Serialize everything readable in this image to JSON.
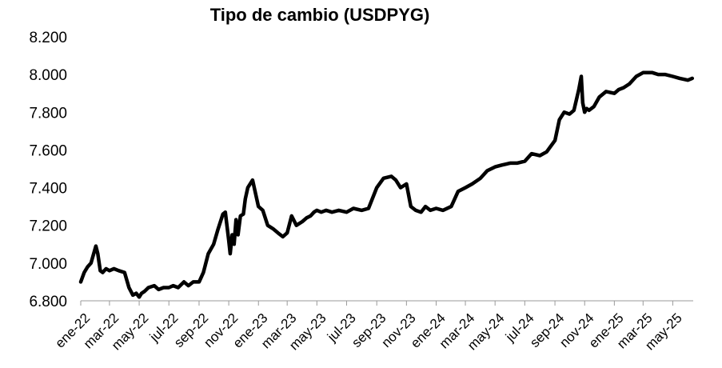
{
  "chart_data": {
    "type": "line",
    "title": "Tipo de cambio (USDPYG)",
    "xlabel": "",
    "ylabel": "",
    "ylim": [
      6800,
      8200
    ],
    "yticks": [
      {
        "value": 6800,
        "label": "6.800"
      },
      {
        "value": 7000,
        "label": "7.000"
      },
      {
        "value": 7200,
        "label": "7.200"
      },
      {
        "value": 7400,
        "label": "7.400"
      },
      {
        "value": 7600,
        "label": "7.600"
      },
      {
        "value": 7800,
        "label": "7.800"
      },
      {
        "value": 8000,
        "label": "8.000"
      },
      {
        "value": 8200,
        "label": "8.200"
      }
    ],
    "xticks": [
      {
        "date": "2022-01-01",
        "label": "ene-22"
      },
      {
        "date": "2022-03-01",
        "label": "mar-22"
      },
      {
        "date": "2022-05-01",
        "label": "may-22"
      },
      {
        "date": "2022-07-01",
        "label": "jul-22"
      },
      {
        "date": "2022-09-01",
        "label": "sep-22"
      },
      {
        "date": "2022-11-01",
        "label": "nov-22"
      },
      {
        "date": "2023-01-01",
        "label": "ene-23"
      },
      {
        "date": "2023-03-01",
        "label": "mar-23"
      },
      {
        "date": "2023-05-01",
        "label": "may-23"
      },
      {
        "date": "2023-07-01",
        "label": "jul-23"
      },
      {
        "date": "2023-09-01",
        "label": "sep-23"
      },
      {
        "date": "2023-11-01",
        "label": "nov-23"
      },
      {
        "date": "2024-01-01",
        "label": "ene-24"
      },
      {
        "date": "2024-03-01",
        "label": "mar-24"
      },
      {
        "date": "2024-05-01",
        "label": "may-24"
      },
      {
        "date": "2024-07-01",
        "label": "jul-24"
      },
      {
        "date": "2024-09-01",
        "label": "sep-24"
      },
      {
        "date": "2024-11-01",
        "label": "nov-24"
      },
      {
        "date": "2025-01-01",
        "label": "ene-25"
      },
      {
        "date": "2025-03-01",
        "label": "mar-25"
      },
      {
        "date": "2025-05-01",
        "label": "may-25"
      }
    ],
    "grid": false,
    "legend": "none",
    "line_color": "#000000",
    "series": [
      {
        "x": [
          "2022-01-01",
          "2022-01-08",
          "2022-01-15",
          "2022-01-22",
          "2022-02-01",
          "2022-02-05",
          "2022-02-10",
          "2022-02-15",
          "2022-02-22",
          "2022-03-01",
          "2022-03-10",
          "2022-03-20",
          "2022-04-01",
          "2022-04-10",
          "2022-04-18",
          "2022-04-25",
          "2022-05-01",
          "2022-05-06",
          "2022-05-12",
          "2022-05-20",
          "2022-06-01",
          "2022-06-10",
          "2022-06-20",
          "2022-07-01",
          "2022-07-10",
          "2022-07-20",
          "2022-08-01",
          "2022-08-10",
          "2022-08-20",
          "2022-09-01",
          "2022-09-10",
          "2022-09-20",
          "2022-10-01",
          "2022-10-10",
          "2022-10-20",
          "2022-10-25",
          "2022-11-01",
          "2022-11-04",
          "2022-11-08",
          "2022-11-12",
          "2022-11-16",
          "2022-11-20",
          "2022-11-25",
          "2022-12-01",
          "2022-12-05",
          "2022-12-10",
          "2022-12-20",
          "2023-01-01",
          "2023-01-10",
          "2023-01-20",
          "2023-02-01",
          "2023-02-10",
          "2023-02-20",
          "2023-03-01",
          "2023-03-10",
          "2023-03-20",
          "2023-04-01",
          "2023-04-10",
          "2023-04-18",
          "2023-04-25",
          "2023-05-01",
          "2023-05-10",
          "2023-05-20",
          "2023-06-01",
          "2023-06-15",
          "2023-07-01",
          "2023-07-15",
          "2023-08-01",
          "2023-08-15",
          "2023-09-01",
          "2023-09-15",
          "2023-10-01",
          "2023-10-10",
          "2023-10-20",
          "2023-11-01",
          "2023-11-10",
          "2023-11-20",
          "2023-12-01",
          "2023-12-10",
          "2023-12-20",
          "2024-01-01",
          "2024-01-15",
          "2024-02-01",
          "2024-02-15",
          "2024-03-01",
          "2024-03-15",
          "2024-04-01",
          "2024-04-15",
          "2024-05-01",
          "2024-05-15",
          "2024-06-01",
          "2024-06-15",
          "2024-07-01",
          "2024-07-15",
          "2024-08-01",
          "2024-08-15",
          "2024-09-01",
          "2024-09-10",
          "2024-09-20",
          "2024-10-01",
          "2024-10-10",
          "2024-10-20",
          "2024-10-25",
          "2024-10-28",
          "2024-11-01",
          "2024-11-05",
          "2024-11-10",
          "2024-11-20",
          "2024-12-01",
          "2024-12-15",
          "2025-01-01",
          "2025-01-10",
          "2025-01-20",
          "2025-02-01",
          "2025-02-15",
          "2025-03-01",
          "2025-03-10",
          "2025-03-20",
          "2025-04-01",
          "2025-04-15",
          "2025-05-01",
          "2025-05-15",
          "2025-06-01",
          "2025-06-10"
        ],
        "y": [
          6900,
          6950,
          6980,
          7000,
          7090,
          7050,
          6960,
          6950,
          6970,
          6960,
          6970,
          6960,
          6950,
          6870,
          6830,
          6840,
          6820,
          6840,
          6850,
          6870,
          6880,
          6860,
          6870,
          6870,
          6880,
          6870,
          6900,
          6880,
          6900,
          6900,
          6950,
          7050,
          7100,
          7180,
          7260,
          7270,
          7120,
          7050,
          7150,
          7100,
          7230,
          7150,
          7250,
          7260,
          7340,
          7400,
          7440,
          7300,
          7280,
          7200,
          7180,
          7160,
          7140,
          7160,
          7250,
          7200,
          7220,
          7240,
          7250,
          7270,
          7280,
          7270,
          7280,
          7270,
          7280,
          7270,
          7290,
          7280,
          7290,
          7400,
          7450,
          7460,
          7440,
          7400,
          7420,
          7300,
          7280,
          7270,
          7300,
          7280,
          7290,
          7280,
          7300,
          7380,
          7400,
          7420,
          7450,
          7490,
          7510,
          7520,
          7530,
          7530,
          7540,
          7580,
          7570,
          7590,
          7650,
          7760,
          7800,
          7790,
          7810,
          7920,
          7990,
          7850,
          7800,
          7820,
          7810,
          7830,
          7880,
          7910,
          7900,
          7920,
          7930,
          7950,
          7990,
          8010,
          8010,
          8010,
          8000,
          8000,
          7990,
          7980,
          7970,
          7980
        ]
      }
    ]
  }
}
